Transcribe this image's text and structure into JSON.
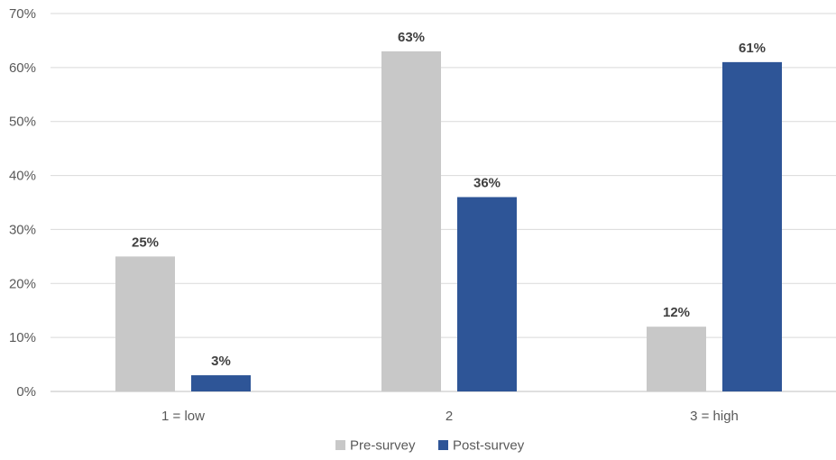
{
  "chart_data": {
    "type": "bar",
    "categories": [
      "1 = low",
      "2",
      "3 = high"
    ],
    "series": [
      {
        "name": "Pre-survey",
        "values": [
          25,
          63,
          12
        ],
        "color": "#c8c8c8"
      },
      {
        "name": "Post-survey",
        "values": [
          3,
          36,
          61
        ],
        "color": "#2e5597"
      }
    ],
    "ylim": [
      0,
      70
    ],
    "yticks": [
      "0%",
      "10%",
      "20%",
      "30%",
      "40%",
      "50%",
      "60%",
      "70%"
    ],
    "value_suffix": "%",
    "grid": true,
    "legend_position": "bottom"
  },
  "colors": {
    "grid": "#d9d9d9",
    "text": "#595959",
    "label": "#404040"
  }
}
